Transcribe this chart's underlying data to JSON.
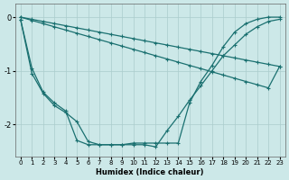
{
  "title": "",
  "xlabel": "Humidex (Indice chaleur)",
  "ylabel": "",
  "bg_color": "#cce8e8",
  "grid_color": "#aacccc",
  "line_color": "#1a7070",
  "xlim": [
    -0.5,
    23.5
  ],
  "ylim": [
    -2.6,
    0.25
  ],
  "yticks": [
    0,
    -1,
    -2
  ],
  "xticks": [
    0,
    1,
    2,
    3,
    4,
    5,
    6,
    7,
    8,
    9,
    10,
    11,
    12,
    13,
    14,
    15,
    16,
    17,
    18,
    19,
    20,
    21,
    22,
    23
  ],
  "s1_x": [
    0,
    1,
    2,
    3,
    4,
    5,
    6,
    7,
    8,
    9,
    10,
    11,
    12,
    13,
    14,
    15,
    16,
    17,
    18,
    19,
    20,
    21,
    22,
    23
  ],
  "s1_y": [
    0.0,
    -0.04,
    -0.08,
    -0.12,
    -0.16,
    -0.2,
    -0.24,
    -0.28,
    -0.32,
    -0.36,
    -0.4,
    -0.44,
    -0.48,
    -0.52,
    -0.56,
    -0.6,
    -0.64,
    -0.68,
    -0.72,
    -0.76,
    -0.8,
    -0.84,
    -0.88,
    -0.92
  ],
  "s2_x": [
    0,
    1,
    2,
    3,
    4,
    5,
    6,
    7,
    8,
    9,
    10,
    11,
    12,
    13,
    14,
    15,
    16,
    17,
    18,
    19,
    20,
    21,
    22,
    23
  ],
  "s2_y": [
    0.0,
    -0.06,
    -0.12,
    -0.18,
    -0.24,
    -0.3,
    -0.36,
    -0.42,
    -0.48,
    -0.54,
    -0.6,
    -0.66,
    -0.72,
    -0.78,
    -0.84,
    -0.9,
    -0.96,
    -1.02,
    -1.08,
    -1.14,
    -1.2,
    -1.26,
    -1.32,
    -0.92
  ],
  "s3_x": [
    0,
    1,
    2,
    3,
    4,
    5,
    6,
    7,
    8,
    9,
    10,
    11,
    12,
    13,
    14,
    15,
    16,
    17,
    18,
    19,
    20,
    21,
    22,
    23
  ],
  "s3_y": [
    -0.05,
    -0.95,
    -1.4,
    -1.6,
    -1.75,
    -2.3,
    -2.38,
    -2.38,
    -2.38,
    -2.38,
    -2.35,
    -2.35,
    -2.35,
    -2.35,
    -2.35,
    -1.6,
    -1.2,
    -0.9,
    -0.55,
    -0.28,
    -0.12,
    -0.04,
    0.0,
    0.0
  ],
  "s4_x": [
    0,
    1,
    2,
    3,
    4,
    5,
    6,
    7,
    8,
    9,
    10,
    11,
    12,
    13,
    14,
    15,
    16,
    17,
    18,
    19,
    20,
    21,
    22,
    23
  ],
  "s4_y": [
    -0.05,
    -1.05,
    -1.42,
    -1.65,
    -1.78,
    -1.95,
    -2.32,
    -2.38,
    -2.38,
    -2.38,
    -2.38,
    -2.38,
    -2.42,
    -2.12,
    -1.85,
    -1.55,
    -1.28,
    -1.0,
    -0.72,
    -0.52,
    -0.32,
    -0.18,
    -0.08,
    -0.04
  ]
}
